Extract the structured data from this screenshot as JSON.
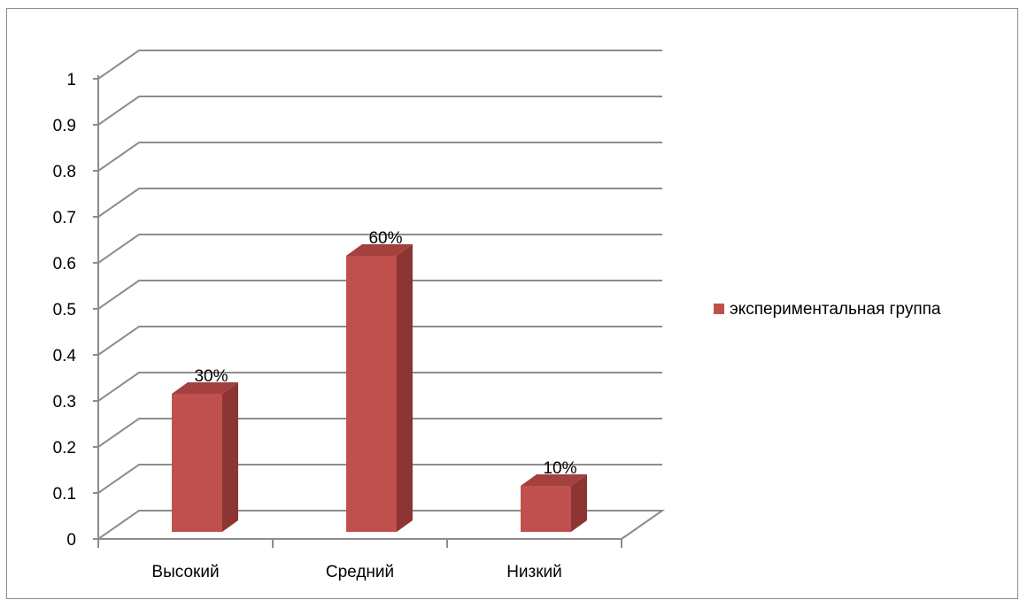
{
  "chart_data": {
    "type": "bar",
    "categories": [
      "Высокий",
      "Средний",
      "Низкий"
    ],
    "series": [
      {
        "name": "экспериментальная группа",
        "values": [
          0.3,
          0.6,
          0.1
        ],
        "color": "#c0504d"
      }
    ],
    "data_labels": [
      "30%",
      "60%",
      "10%"
    ],
    "ylim": [
      0,
      1
    ],
    "yticks": [
      "0",
      "0.1",
      "0.2",
      "0.3",
      "0.4",
      "0.5",
      "0.6",
      "0.7",
      "0.8",
      "0.9",
      "1"
    ],
    "grid": true,
    "legend_position": "right",
    "title": "",
    "xlabel": "",
    "ylabel": ""
  }
}
